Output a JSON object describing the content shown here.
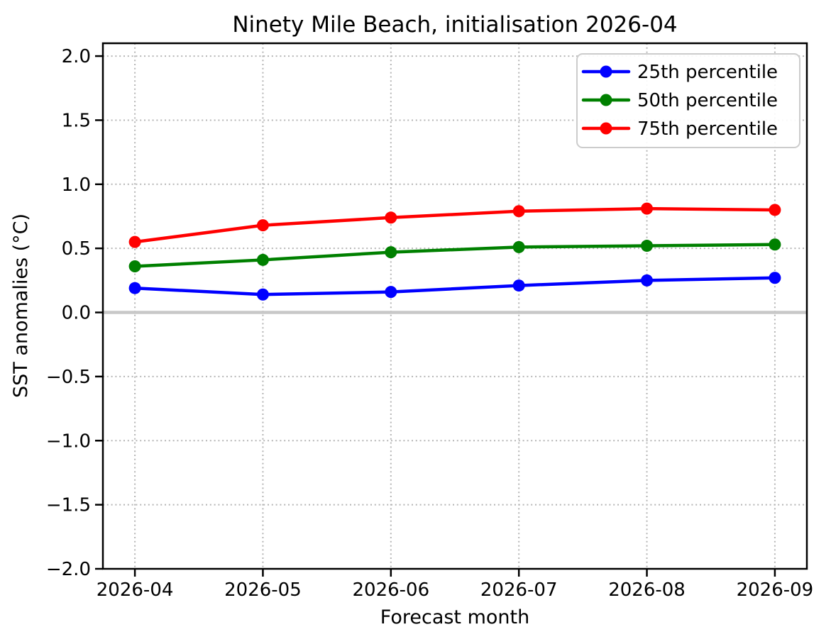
{
  "chart_data": {
    "type": "line",
    "title": "Ninety Mile Beach, initialisation 2026-04",
    "xlabel": "Forecast month",
    "ylabel": "SST anomalies (°C)",
    "categories": [
      "2026-04",
      "2026-05",
      "2026-06",
      "2026-07",
      "2026-08",
      "2026-09"
    ],
    "series": [
      {
        "name": "25th percentile",
        "color": "#0000ff",
        "values": [
          0.19,
          0.14,
          0.16,
          0.21,
          0.25,
          0.27
        ]
      },
      {
        "name": "50th percentile",
        "color": "#008000",
        "values": [
          0.36,
          0.41,
          0.47,
          0.51,
          0.52,
          0.53
        ]
      },
      {
        "name": "75th percentile",
        "color": "#ff0000",
        "values": [
          0.55,
          0.68,
          0.74,
          0.79,
          0.81,
          0.8
        ]
      }
    ],
    "yticks": [
      2.0,
      1.5,
      1.0,
      0.5,
      0.0,
      -0.5,
      -1.0,
      -1.5,
      -2.0
    ],
    "ytick_labels": [
      "2.0",
      "1.5",
      "1.0",
      "0.5",
      "0.0",
      "−0.5",
      "−1.0",
      "−1.5",
      "−2.0"
    ],
    "xlim": [
      -0.25,
      5.25
    ],
    "ylim": [
      -2.0,
      2.1
    ],
    "grid": true,
    "grid_style": "dotted",
    "grid_color": "#b5b5b5",
    "zero_line": true,
    "zero_line_color": "#c8c8c8",
    "marker": "circle",
    "legend_position": "upper right",
    "legend_border_color": "#cccccc"
  }
}
